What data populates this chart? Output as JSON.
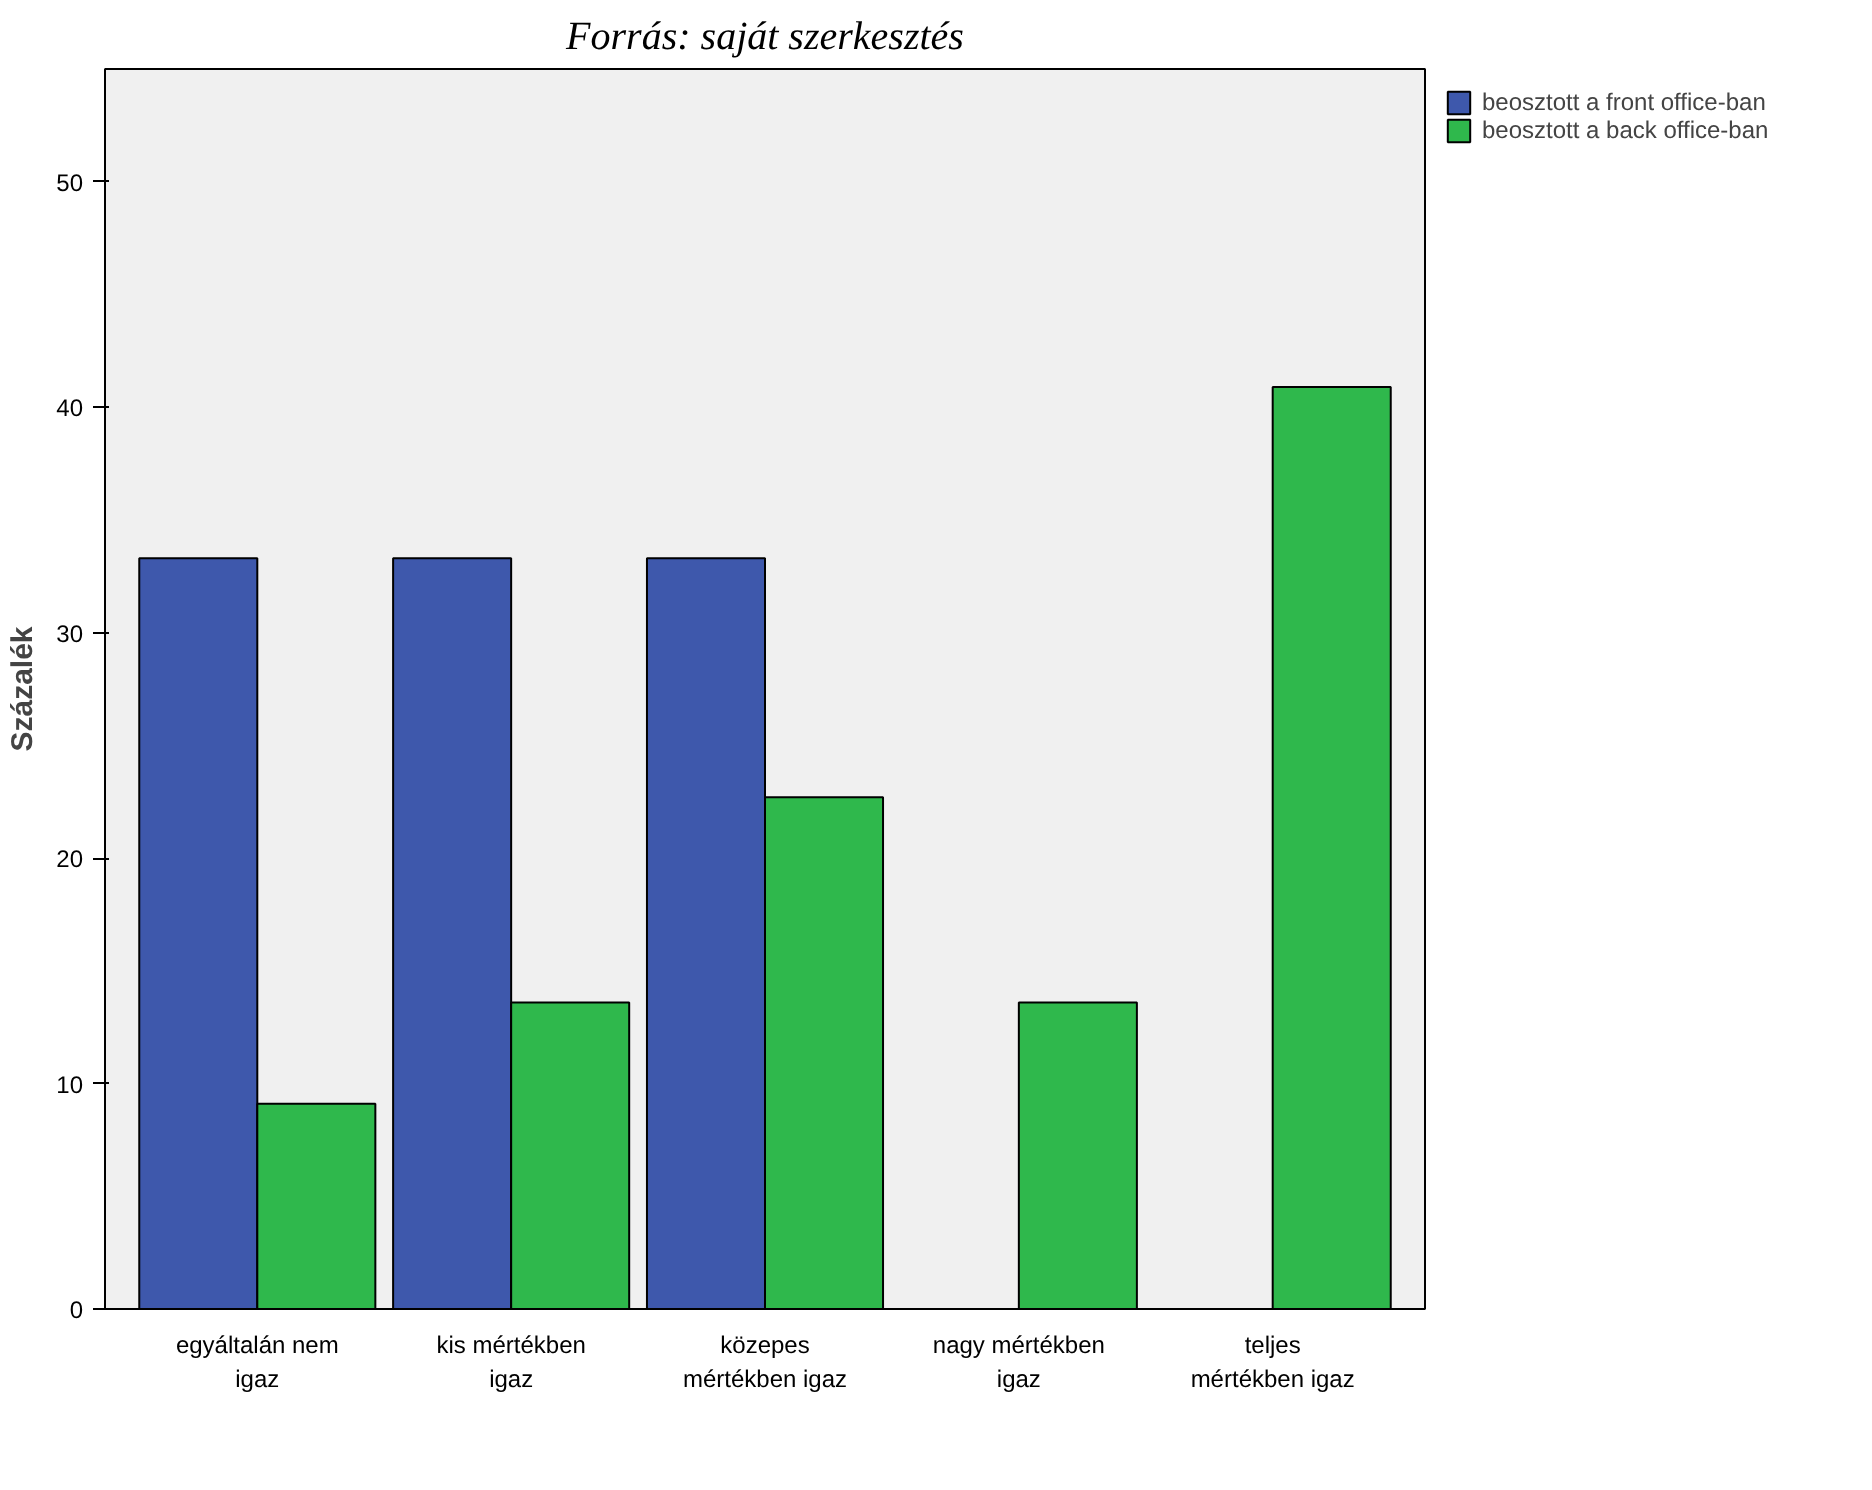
{
  "chart_data": {
    "type": "bar",
    "title": "Forrás: saját szerkesztés",
    "ylabel": "Százalék",
    "categories": [
      "egyáltalán nem igaz",
      "kis mértékben igaz",
      "közepes mértékben igaz",
      "nagy mértékben igaz",
      "teljes mértékben igaz"
    ],
    "series": [
      {
        "name": "beosztott a front office-ban",
        "color": "#3e58ac",
        "values": [
          33.3,
          33.3,
          33.3,
          0,
          0
        ]
      },
      {
        "name": "beosztott a back office-ban",
        "color": "#2fb84c",
        "values": [
          9.1,
          13.6,
          22.7,
          13.6,
          40.9
        ]
      }
    ],
    "ylim": [
      0,
      55
    ],
    "yticks": [
      0,
      10,
      20,
      30,
      40,
      50
    ],
    "grid": false,
    "legend": "top right"
  }
}
